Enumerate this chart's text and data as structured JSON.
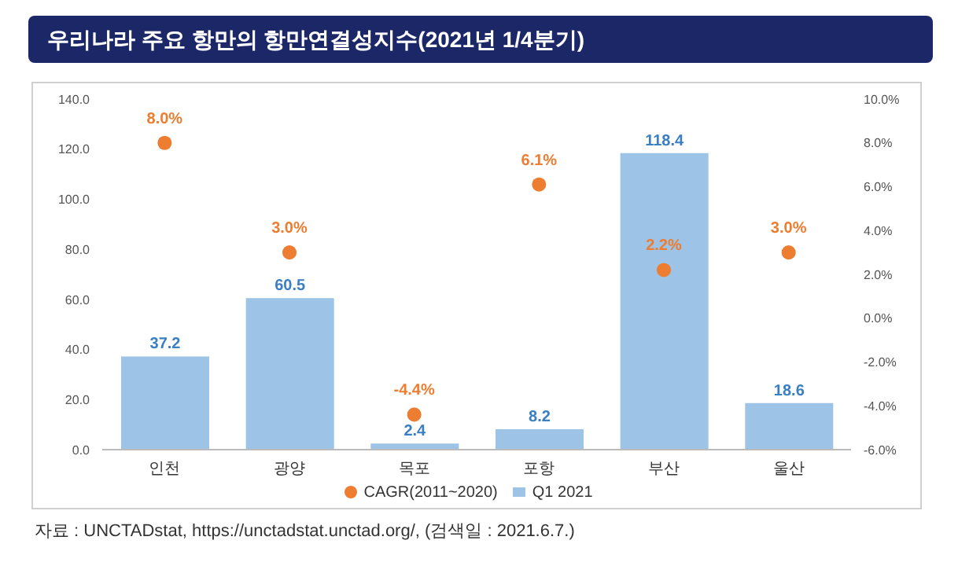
{
  "chart_data": {
    "type": "bar",
    "title": "우리나라 주요 항만의 항만연결성지수(2021년 1/4분기)",
    "categories": [
      "인천",
      "광양",
      "목포",
      "포항",
      "부산",
      "울산"
    ],
    "series": [
      {
        "name": "Q1 2021",
        "color": "#9dc3e6",
        "values": [
          37.2,
          60.5,
          2.4,
          8.2,
          118.4,
          18.6
        ],
        "value_labels": [
          "37.2",
          "60.5",
          "2.4",
          "8.2",
          "118.4",
          "18.6"
        ]
      },
      {
        "name": "CAGR(2011~2020)",
        "type": "scatter",
        "axis": "y2",
        "color": "#ed7d31",
        "values": [
          8.0,
          3.0,
          -4.4,
          6.1,
          2.2,
          3.0
        ],
        "value_labels": [
          "8.0%",
          "3.0%",
          "-4.4%",
          "6.1%",
          "2.2%",
          "3.0%"
        ]
      }
    ],
    "ylim": [
      0,
      140
    ],
    "yticks": [
      {
        "value": 0,
        "label": "0.0"
      },
      {
        "value": 20,
        "label": "20.0"
      },
      {
        "value": 40,
        "label": "40.0"
      },
      {
        "value": 60,
        "label": "60.0"
      },
      {
        "value": 80,
        "label": "80.0"
      },
      {
        "value": 100,
        "label": "100.0"
      },
      {
        "value": 120,
        "label": "120.0"
      },
      {
        "value": 140,
        "label": "140.0"
      }
    ],
    "y2lim": [
      -6,
      10
    ],
    "y2ticks": [
      {
        "value": -6,
        "label": "-6.0%"
      },
      {
        "value": -4,
        "label": "-4.0%"
      },
      {
        "value": -2,
        "label": "-2.0%"
      },
      {
        "value": 0,
        "label": "0.0%"
      },
      {
        "value": 2,
        "label": "2.0%"
      },
      {
        "value": 4,
        "label": "4.0%"
      },
      {
        "value": 6,
        "label": "6.0%"
      },
      {
        "value": 8,
        "label": "8.0%"
      },
      {
        "value": 10,
        "label": "10.0%"
      }
    ],
    "legend": "bottom",
    "annotations": [
      "자료 : UNCTADstat, https://unctadstat.unctad.org/, (검색일 : 2021.6.7.)"
    ]
  }
}
